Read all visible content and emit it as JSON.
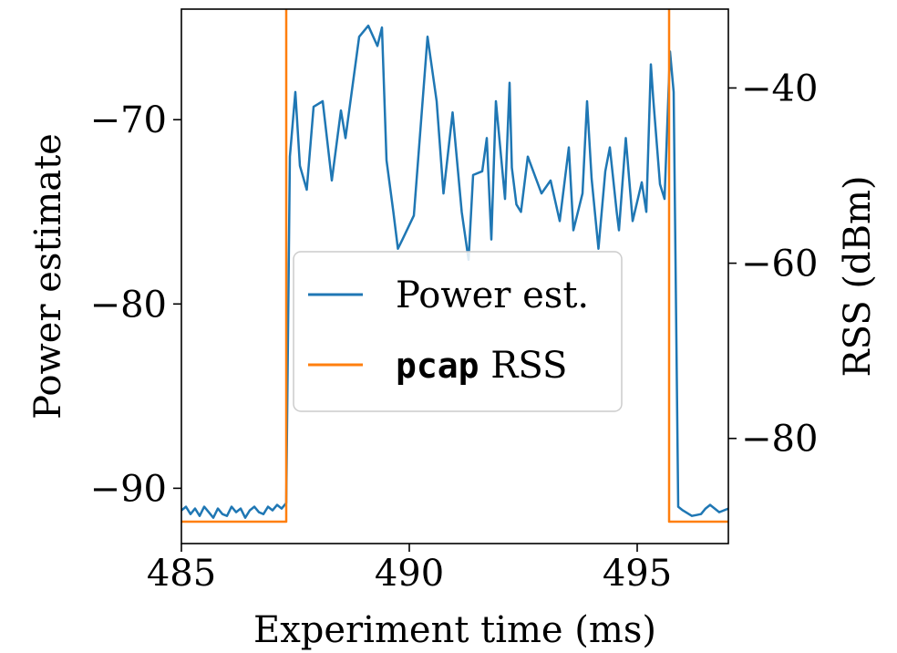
{
  "chart_data": {
    "type": "line",
    "xlabel": "Experiment time (ms)",
    "ylabel_left": "Power estimate",
    "ylabel_right": "RSS (dBm)",
    "xlim": [
      485,
      497
    ],
    "ylim_left": [
      -93,
      -64
    ],
    "ylim_right": [
      -92,
      -31
    ],
    "x_ticks": [
      485,
      490,
      495
    ],
    "x_tick_labels": [
      "485",
      "490",
      "495"
    ],
    "y_left_ticks": [
      -70,
      -80,
      -90
    ],
    "y_left_tick_labels": [
      "−70",
      "−80",
      "−90"
    ],
    "y_right_ticks": [
      -40,
      -60,
      -80
    ],
    "y_right_tick_labels": [
      "−40",
      "−60",
      "−80"
    ],
    "grid": false,
    "legend": {
      "placement": "center",
      "entries": [
        {
          "series": "power",
          "label": "Power est."
        },
        {
          "series": "rss",
          "label_mono": "pcap",
          "label": " RSS"
        }
      ]
    },
    "series": [
      {
        "name": "Power est.",
        "axis": "left",
        "color": "#1f77b4",
        "x": [
          485.0,
          485.1,
          485.2,
          485.3,
          485.4,
          485.5,
          485.6,
          485.7,
          485.8,
          485.9,
          486.0,
          486.1,
          486.2,
          486.3,
          486.4,
          486.5,
          486.6,
          486.7,
          486.8,
          486.9,
          487.0,
          487.1,
          487.2,
          487.3,
          487.38,
          487.5,
          487.6,
          487.75,
          487.9,
          488.1,
          488.3,
          488.5,
          488.6,
          488.9,
          489.1,
          489.3,
          489.4,
          489.5,
          489.65,
          489.75,
          489.85,
          490.1,
          490.4,
          490.6,
          490.75,
          490.95,
          491.15,
          491.3,
          491.4,
          491.6,
          491.7,
          491.8,
          491.9,
          492.1,
          492.2,
          492.25,
          492.35,
          492.45,
          492.6,
          492.75,
          492.9,
          493.1,
          493.3,
          493.5,
          493.6,
          493.8,
          493.9,
          494.0,
          494.15,
          494.3,
          494.4,
          494.55,
          494.6,
          494.75,
          494.9,
          495.1,
          495.2,
          495.3,
          495.35,
          495.5,
          495.6,
          495.72,
          495.8,
          495.9,
          496.0,
          496.2,
          496.4,
          496.5,
          496.6,
          496.8,
          497.0
        ],
        "y": [
          -91.2,
          -91.0,
          -91.4,
          -91.1,
          -91.5,
          -91.0,
          -91.3,
          -91.6,
          -91.1,
          -91.4,
          -91.5,
          -91.0,
          -91.3,
          -91.1,
          -91.6,
          -91.2,
          -91.0,
          -91.3,
          -91.4,
          -91.0,
          -91.2,
          -90.9,
          -91.1,
          -90.8,
          -72.0,
          -68.5,
          -72.5,
          -73.8,
          -69.3,
          -69.0,
          -73.3,
          -69.5,
          -71.0,
          -65.5,
          -64.9,
          -66.0,
          -65.0,
          -72.2,
          -75.0,
          -77.0,
          -76.5,
          -75.2,
          -65.5,
          -69.0,
          -74.0,
          -69.6,
          -75.0,
          -77.6,
          -73.0,
          -72.8,
          -71.0,
          -76.5,
          -69.0,
          -74.3,
          -68.0,
          -72.6,
          -74.6,
          -75.0,
          -72.0,
          -73.0,
          -74.0,
          -73.3,
          -75.5,
          -71.5,
          -76.0,
          -74.0,
          -69.0,
          -73.2,
          -77.0,
          -72.8,
          -71.5,
          -75.0,
          -76.0,
          -71.0,
          -75.5,
          -73.4,
          -75.0,
          -67.0,
          -68.8,
          -73.5,
          -74.3,
          -66.3,
          -68.5,
          -91.0,
          -91.2,
          -91.5,
          -91.4,
          -91.1,
          -90.9,
          -91.3,
          -91.1
        ]
      },
      {
        "name": "pcap RSS",
        "axis": "right",
        "color": "#ff7f0e",
        "x": [
          485.0,
          487.3,
          487.3,
          495.7,
          495.7,
          497.0
        ],
        "y": [
          -89.5,
          -89.5,
          -30.0,
          -30.0,
          -89.5,
          -89.5
        ]
      }
    ]
  }
}
